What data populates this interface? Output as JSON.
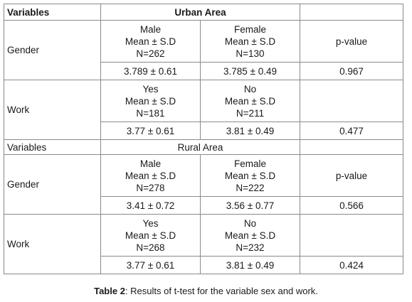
{
  "table": {
    "sections": [
      {
        "label": "Variables",
        "area": "Urban Area",
        "header_bold": true,
        "groups": [
          {
            "name": "Gender",
            "col1": [
              "Male",
              "Mean ± S.D",
              "N=262"
            ],
            "col2": [
              "Female",
              "Mean ± S.D",
              "N=130"
            ],
            "col3": "p-value",
            "v1": "3.789 ± 0.61",
            "v2": "3.785 ± 0.49",
            "p": "0.967"
          },
          {
            "name": "Work",
            "col1": [
              "Yes",
              "Mean ± S.D",
              "N=181"
            ],
            "col2": [
              "No",
              "Mean ± S.D",
              "N=211"
            ],
            "col3": "",
            "v1": "3.77 ± 0.61",
            "v2": "3.81 ± 0.49",
            "p": "0.477"
          }
        ]
      },
      {
        "label": "Variables",
        "area": "Rural Area",
        "header_bold": false,
        "groups": [
          {
            "name": "Gender",
            "col1": [
              "Male",
              "Mean ± S.D",
              "N=278"
            ],
            "col2": [
              "Female",
              "Mean ± S.D",
              "N=222"
            ],
            "col3": "p-value",
            "v1": "3.41 ± 0.72",
            "v2": "3.56 ± 0.77",
            "p": "0.566"
          },
          {
            "name": "Work",
            "col1": [
              "Yes",
              "Mean ± S.D",
              "N=268"
            ],
            "col2": [
              "No",
              "Mean ± S.D",
              "N=232"
            ],
            "col3": "",
            "v1": "3.77 ± 0.61",
            "v2": "3.81 ± 0.49",
            "p": "0.424"
          }
        ]
      }
    ]
  },
  "caption": {
    "label": "Table 2",
    "text": ": Results of t-test for the variable sex and work."
  }
}
